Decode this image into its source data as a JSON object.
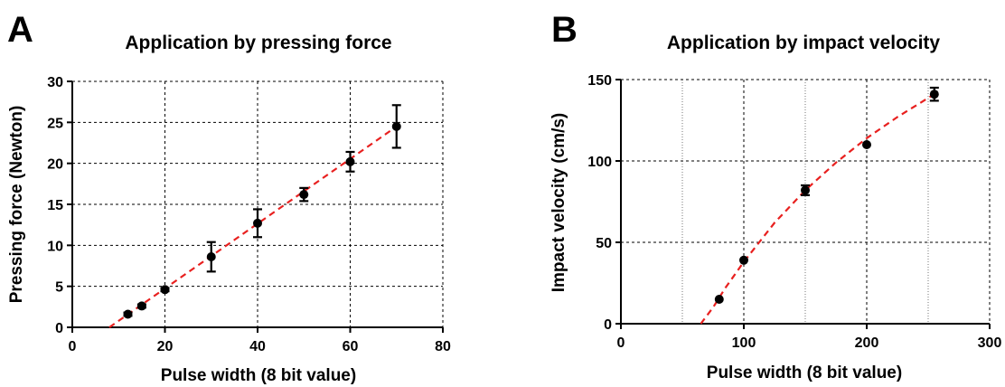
{
  "chart_data": [
    {
      "type": "scatter",
      "panel": "A",
      "title": "Application by pressing force",
      "xlabel": "Pulse width (8 bit value)",
      "ylabel": "Pressing force (Newton)",
      "xlim": [
        0,
        80
      ],
      "ylim": [
        0,
        30
      ],
      "xticks": [
        0,
        20,
        40,
        60,
        80
      ],
      "yticks": [
        0,
        5,
        10,
        15,
        20,
        25,
        30
      ],
      "grid": true,
      "series": [
        {
          "points": [
            {
              "x": 12,
              "y": 1.6,
              "err": 0.2
            },
            {
              "x": 15,
              "y": 2.6,
              "err": 0.2
            },
            {
              "x": 20,
              "y": 4.6,
              "err": 0.2
            },
            {
              "x": 30,
              "y": 8.6,
              "err": 1.8
            },
            {
              "x": 40,
              "y": 12.7,
              "err": 1.7
            },
            {
              "x": 50,
              "y": 16.2,
              "err": 0.8
            },
            {
              "x": 60,
              "y": 20.2,
              "err": 1.2
            },
            {
              "x": 70,
              "y": 24.5,
              "err": 2.6
            }
          ],
          "color": "#000000"
        }
      ],
      "fit": {
        "style": "dashed",
        "color": "#e8201f",
        "x": [
          8,
          70
        ],
        "y": [
          0,
          24.5
        ]
      }
    },
    {
      "type": "scatter",
      "panel": "B",
      "title": "Application by impact velocity",
      "xlabel": "Pulse width (8 bit value)",
      "ylabel": "Impact velocity (cm/s)",
      "xlim": [
        0,
        300
      ],
      "ylim": [
        0,
        150
      ],
      "xticks": [
        0,
        100,
        200,
        300
      ],
      "yticks": [
        0,
        50,
        100,
        150
      ],
      "grid": true,
      "series": [
        {
          "points": [
            {
              "x": 80,
              "y": 15,
              "err": 0
            },
            {
              "x": 100,
              "y": 39,
              "err": 0
            },
            {
              "x": 150,
              "y": 82,
              "err": 3
            },
            {
              "x": 200,
              "y": 110,
              "err": 0
            },
            {
              "x": 255,
              "y": 141,
              "err": 4
            }
          ],
          "color": "#000000"
        }
      ],
      "fit": {
        "style": "dashed",
        "color": "#e8201f",
        "x": [
          65,
          75,
          85,
          100,
          125,
          150,
          175,
          200,
          225,
          255
        ],
        "y": [
          0,
          10,
          22,
          38,
          62,
          82,
          99,
          114,
          127,
          141
        ]
      }
    }
  ]
}
